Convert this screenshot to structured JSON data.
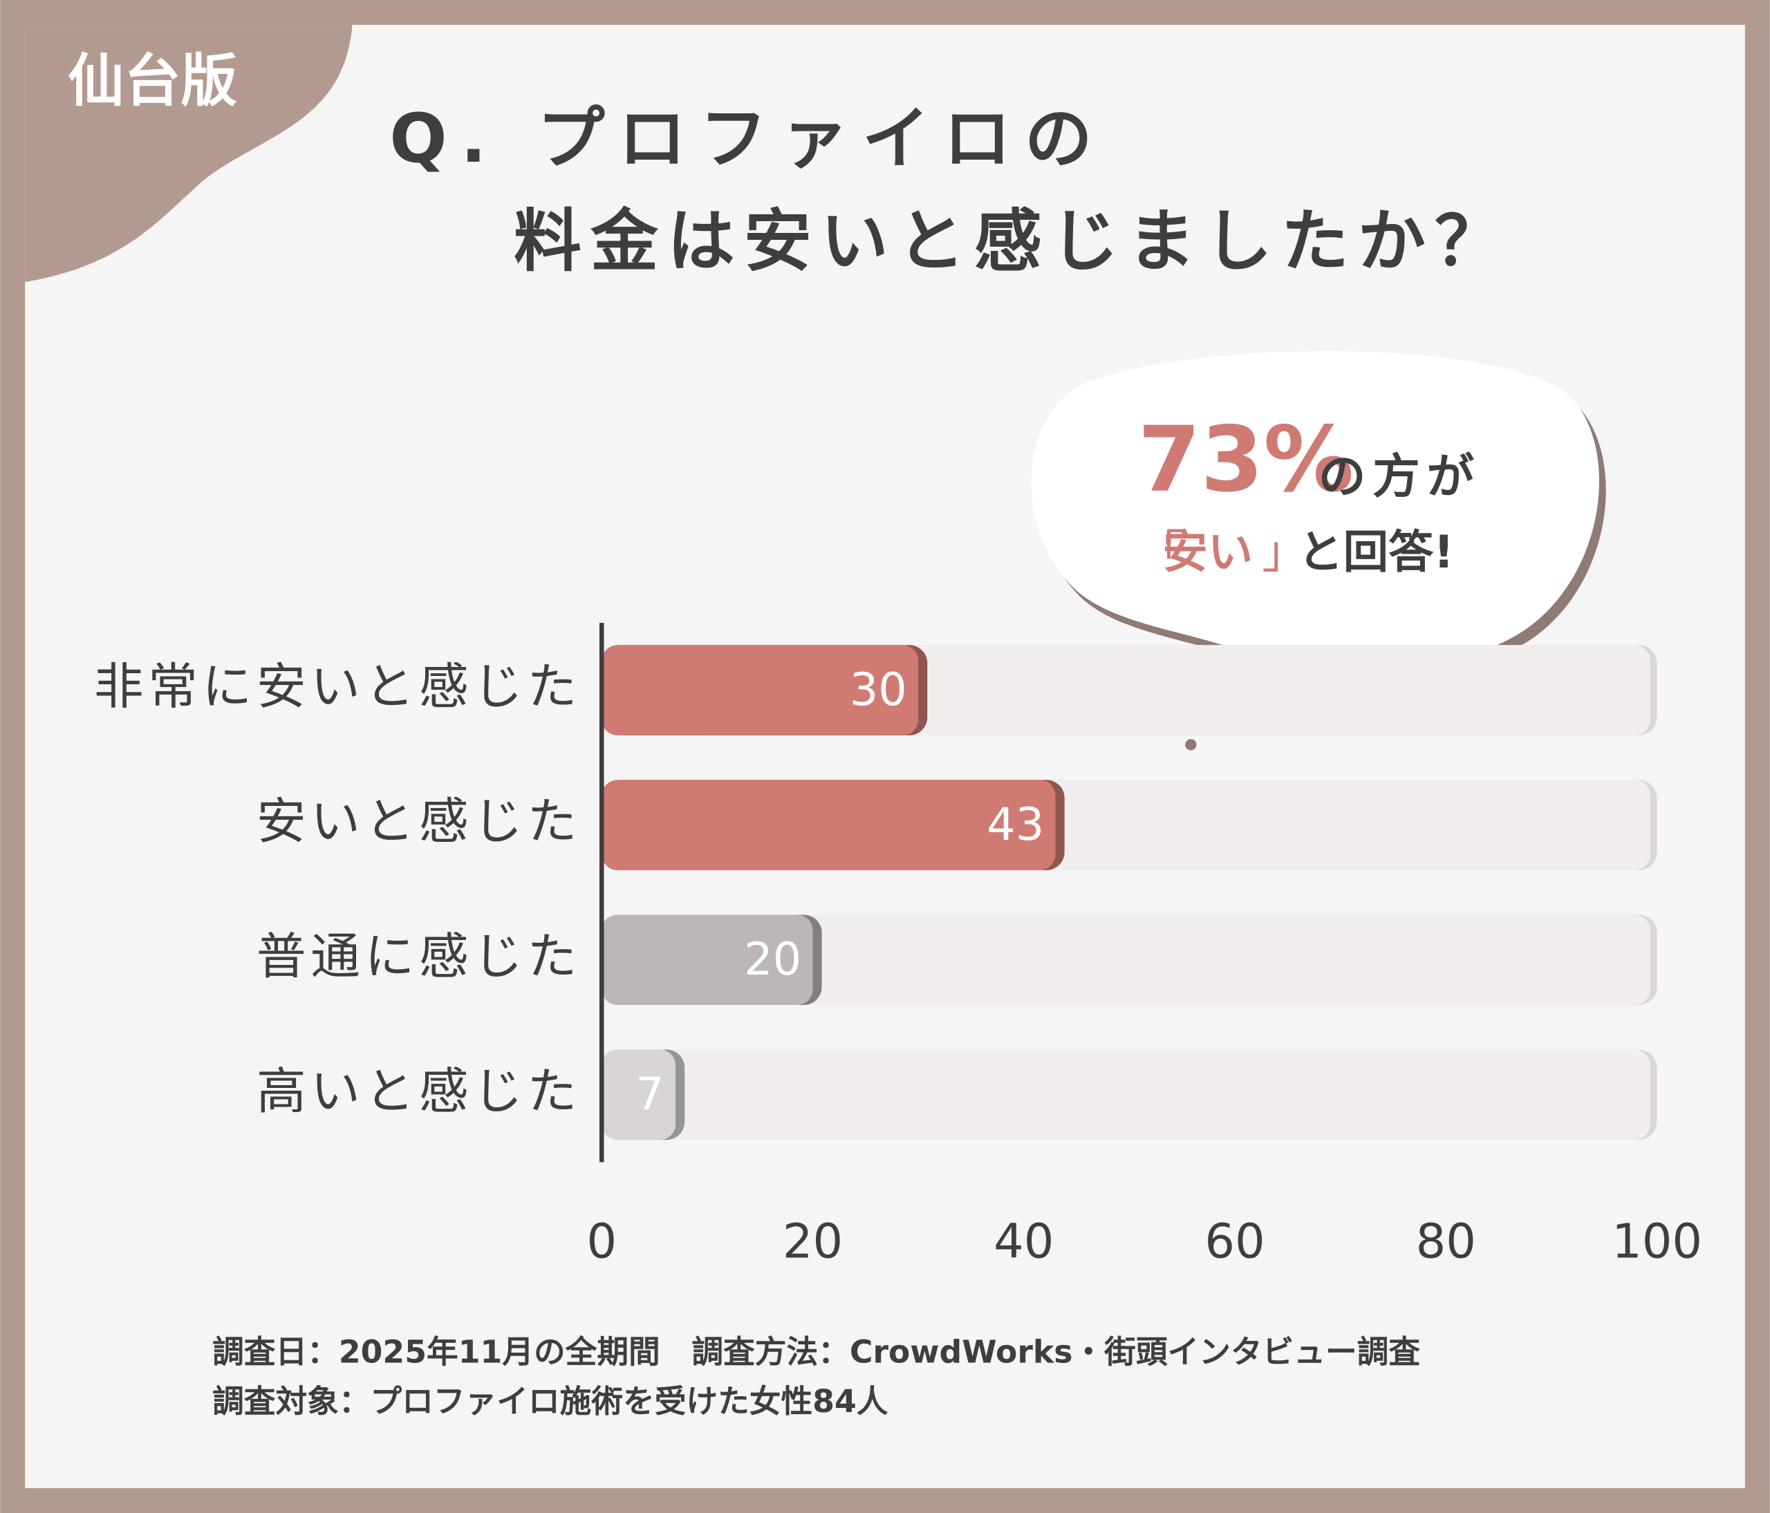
{
  "badge": "仙台版",
  "chart_data": {
    "type": "bar",
    "title": [
      "Q. プロファイロの",
      "料金は安いと感じましたか？"
    ],
    "categories": [
      "非常に安いと感じた",
      "安いと感じた",
      "普通に感じた",
      "高いと感じた"
    ],
    "values": [
      30,
      43,
      20,
      7
    ],
    "colors": [
      "#d07a74",
      "#d07a74",
      "#bcb7b6",
      "#d8d5d4"
    ],
    "xlim": [
      0,
      100
    ],
    "xticks": [
      0,
      20,
      40,
      60,
      80,
      100
    ],
    "orientation": "horizontal"
  },
  "callout": {
    "percent": "73%",
    "line1": "の方が",
    "open": "「",
    "word": "安い",
    "close": "」",
    "line2": "と回答!"
  },
  "footnotes": [
    "調査日：2025年11月の全期間　調査方法：CrowdWorks・街頭インタビュー調査",
    "調査対象：プロファイロ施術を受けた女性84人"
  ]
}
